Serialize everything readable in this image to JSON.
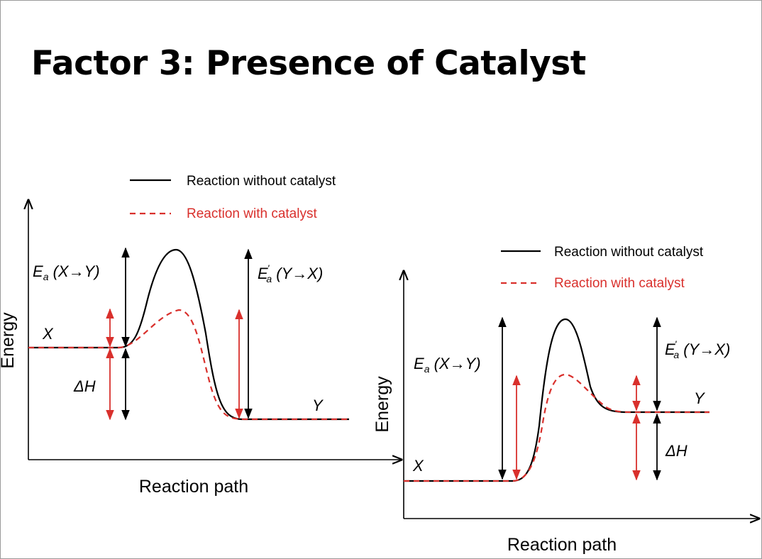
{
  "slide": {
    "title": "Factor 3: Presence of Catalyst"
  },
  "colors": {
    "uncatalyzed": "#000000",
    "catalyzed": "#d9302c"
  },
  "left_diagram": {
    "legend": {
      "without": "Reaction without catalyst",
      "with": "Reaction with catalyst"
    },
    "x_axis_label": "Reaction path",
    "y_axis_label": "Energy",
    "reactant_label": "X",
    "product_label": "Y",
    "ea_forward": {
      "symbol": "E",
      "sub": "a",
      "text": " (X→Y)"
    },
    "ea_reverse": {
      "symbol": "E",
      "prime": "'",
      "sub": "a",
      "text": "  (Y→X)"
    },
    "delta_h": "ΔH"
  },
  "right_diagram": {
    "legend": {
      "without": "Reaction without catalyst",
      "with": "Reaction with catalyst"
    },
    "x_axis_label": "Reaction path",
    "y_axis_label": "Energy",
    "reactant_label": "X",
    "product_label": "Y",
    "ea_forward": {
      "symbol": "E",
      "sub": "a",
      "text": " (X→Y)"
    },
    "ea_reverse": {
      "symbol": "E",
      "prime": "'",
      "sub": "a",
      "text": " (Y→X)"
    },
    "delta_h": "ΔH"
  }
}
